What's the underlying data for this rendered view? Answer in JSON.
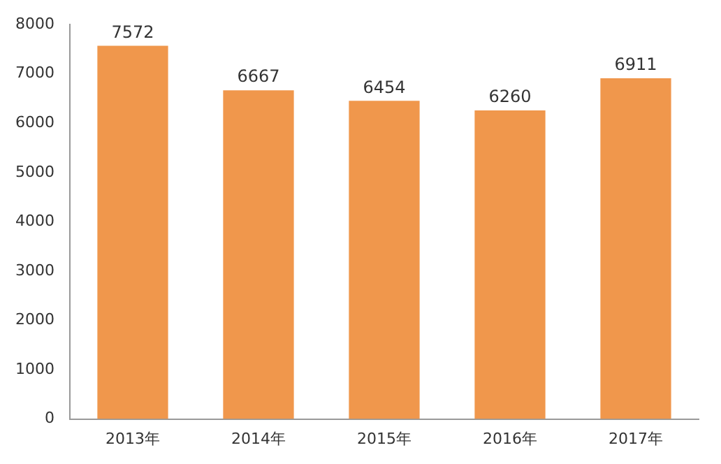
{
  "chart_data": {
    "type": "bar",
    "categories": [
      "2013年",
      "2014年",
      "2015年",
      "2016年",
      "2017年"
    ],
    "values": [
      7572,
      6667,
      6454,
      6260,
      6911
    ],
    "color": "#f0974c",
    "ylim": [
      0,
      8000
    ],
    "yticks": [
      0,
      1000,
      2000,
      3000,
      4000,
      5000,
      6000,
      7000,
      8000
    ],
    "grid": false,
    "legend": false,
    "data_labels": true
  }
}
